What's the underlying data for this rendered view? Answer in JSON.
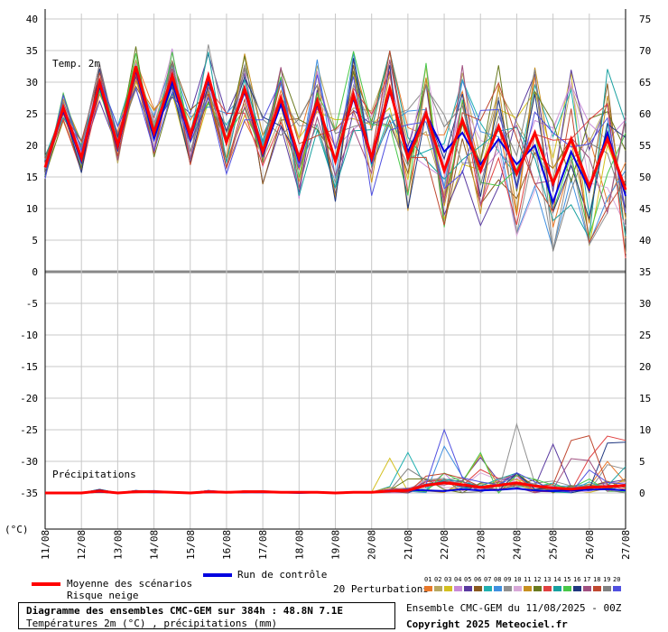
{
  "chart_data": {
    "type": "line",
    "x_categories": [
      "11/08",
      "12/08",
      "13/08",
      "14/08",
      "15/08",
      "16/08",
      "17/08",
      "18/08",
      "19/08",
      "20/08",
      "21/08",
      "22/08",
      "23/08",
      "24/08",
      "25/08",
      "26/08",
      "27/08"
    ],
    "left_axis": {
      "ticks": [
        "40",
        "35",
        "30",
        "25",
        "20",
        "15",
        "10",
        "5",
        "0",
        "-5",
        "-10",
        "-15",
        "-20",
        "-25",
        "-30",
        "-35"
      ],
      "unit": "(°C)",
      "ylim": [
        -35,
        40
      ]
    },
    "right_axis": {
      "ticks": [
        "75",
        "70",
        "65",
        "60",
        "55",
        "50",
        "45",
        "40",
        "35",
        "30",
        "25",
        "20",
        "15",
        "10",
        "5",
        "0"
      ],
      "ylim": [
        0,
        75
      ]
    },
    "temperature_label": "Temp. 2m",
    "precip_label": "Précipitations",
    "temp_mean": [
      16.5,
      26,
      18,
      30,
      20,
      32.5,
      22,
      31,
      21.5,
      31,
      20.5,
      29,
      19,
      27.5,
      18,
      27,
      17.5,
      28,
      18,
      29,
      18,
      25,
      16,
      24,
      16,
      23,
      15.5,
      22,
      14,
      21,
      13.5,
      21,
      13
    ],
    "temp_control": [
      16.5,
      25.5,
      17.5,
      29.5,
      19.5,
      32,
      21,
      30,
      21,
      30.5,
      20.5,
      28.5,
      18.5,
      26.5,
      17.5,
      26.5,
      17.5,
      27.5,
      17.5,
      28.5,
      19,
      25,
      19,
      22,
      17,
      21,
      17,
      20,
      11,
      19,
      13,
      22,
      12
    ],
    "precip_mean": [
      0,
      0,
      0,
      0.3,
      0,
      0.2,
      0.2,
      0.1,
      0,
      0.2,
      0.1,
      0.2,
      0.2,
      0.1,
      0.1,
      0.1,
      0,
      0.1,
      0.1,
      0.3,
      0.4,
      1.2,
      1.6,
      1.3,
      0.9,
      1.2,
      1.6,
      1.1,
      0.8,
      0.6,
      0.9,
      1.0,
      1.2
    ],
    "precip_control": [
      0,
      0,
      0,
      0.2,
      0,
      0.2,
      0.1,
      0.1,
      0,
      0.1,
      0.1,
      0.1,
      0.2,
      0.1,
      0,
      0.1,
      0,
      0.1,
      0.1,
      0.3,
      0.5,
      0.4,
      0.3,
      0.6,
      0.4,
      0.5,
      0.7,
      0.4,
      0.3,
      0.4,
      0.5,
      0.6,
      0.4
    ],
    "perturbation_colors": [
      "#e8782a",
      "#b8a860",
      "#d4c020",
      "#c88ad8",
      "#5a3aa0",
      "#8a5a20",
      "#20b0b0",
      "#4090e0",
      "#909090",
      "#d8a8d8",
      "#c89020",
      "#6a7a20",
      "#e04040",
      "#18a0a0",
      "#48c848",
      "#203880",
      "#a05080",
      "#c04830",
      "#808080",
      "#5050e0"
    ]
  },
  "legend": {
    "mean_label": "Moyenne des scénarios",
    "snow_label": "Risque neige",
    "control_label": "Run de contrôle",
    "pert_label": "20 Perturbations",
    "pert_numbers": [
      "01",
      "02",
      "03",
      "04",
      "05",
      "06",
      "07",
      "08",
      "09",
      "10",
      "11",
      "12",
      "13",
      "14",
      "15",
      "16",
      "17",
      "18",
      "19",
      "20"
    ],
    "mean_color": "#ff0000",
    "control_color": "#0000e0"
  },
  "caption": {
    "title": "Diagramme des ensembles CMC-GEM sur 384h : 48.8N 7.1E",
    "subtitle": "Températures 2m (°C) , précipitations (mm)",
    "run": "Ensemble CMC-GEM du 11/08/2025 - 00Z",
    "copyright": "Copyright 2025 Meteociel.fr"
  }
}
